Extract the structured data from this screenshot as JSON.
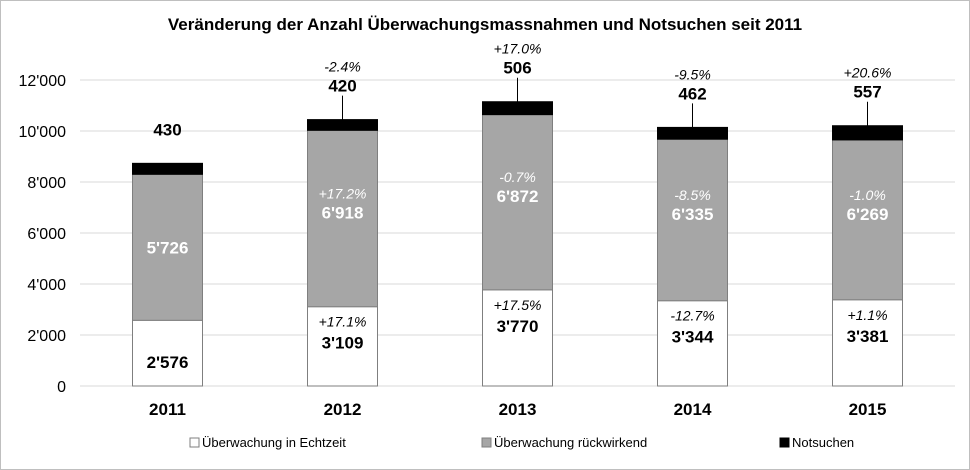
{
  "chart_data": {
    "type": "bar",
    "stacked": true,
    "title": "Veränderung der Anzahl Überwachungsmassnahmen und Notsuchen seit 2011",
    "categories": [
      "2011",
      "2012",
      "2013",
      "2014",
      "2015"
    ],
    "ylim": [
      0,
      12000
    ],
    "yticks": [
      {
        "value": 0,
        "label": "0"
      },
      {
        "value": 2000,
        "label": "2'000"
      },
      {
        "value": 4000,
        "label": "4'000"
      },
      {
        "value": 6000,
        "label": "6'000"
      },
      {
        "value": 8000,
        "label": "8'000"
      },
      {
        "value": 10000,
        "label": "10'000"
      },
      {
        "value": 12000,
        "label": "12'000"
      }
    ],
    "grid": true,
    "legend_position": "bottom",
    "series": [
      {
        "name": "Überwachung in Echtzeit",
        "color": "#ffffff",
        "values": [
          2576,
          3109,
          3770,
          3344,
          3381
        ],
        "labels": [
          "2'576",
          "3'109",
          "3'770",
          "3'344",
          "3'381"
        ],
        "changes": [
          "",
          "+17.1%",
          "+17.5%",
          "-12.7%",
          "+1.1%"
        ]
      },
      {
        "name": "Überwachung rückwirkend",
        "color": "#a6a6a6",
        "values": [
          5726,
          6918,
          6872,
          6335,
          6269
        ],
        "labels": [
          "5'726",
          "6'918",
          "6'872",
          "6'335",
          "6'269"
        ],
        "changes": [
          "",
          "+17.2%",
          "-0.7%",
          "-8.5%",
          "-1.0%"
        ]
      },
      {
        "name": "Notsuchen",
        "color": "#000000",
        "values": [
          430,
          420,
          506,
          462,
          557
        ],
        "labels": [
          "430",
          "420",
          "506",
          "462",
          "557"
        ],
        "changes": [
          "",
          "-2.4%",
          "+17.0%",
          "-9.5%",
          "+20.6%"
        ]
      }
    ]
  }
}
